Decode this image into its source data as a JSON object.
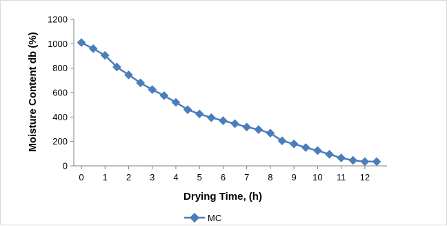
{
  "chart_data": {
    "type": "line",
    "title": "",
    "xlabel": "Drying  Time, (h)",
    "ylabel": "Moisture Content db (%)",
    "xlim": [
      0,
      12.5
    ],
    "ylim": [
      0,
      1200
    ],
    "x_ticks": [
      0,
      1,
      2,
      3,
      4,
      5,
      6,
      7,
      8,
      9,
      10,
      11,
      12
    ],
    "y_ticks": [
      0,
      200,
      400,
      600,
      800,
      1000,
      1200
    ],
    "grid": false,
    "legend_position": "bottom",
    "series": [
      {
        "name": "MC",
        "color": "#4a7ebb",
        "marker": "diamond",
        "x": [
          0,
          0.5,
          1,
          1.5,
          2,
          2.5,
          3,
          3.5,
          4,
          4.5,
          5,
          5.5,
          6,
          6.5,
          7,
          7.5,
          8,
          8.5,
          9,
          9.5,
          10,
          10.5,
          11,
          11.5,
          12,
          12.5
        ],
        "y": [
          1010,
          960,
          905,
          810,
          745,
          680,
          625,
          575,
          520,
          460,
          425,
          395,
          370,
          345,
          318,
          297,
          268,
          205,
          180,
          150,
          125,
          95,
          65,
          45,
          35,
          35
        ]
      }
    ]
  }
}
